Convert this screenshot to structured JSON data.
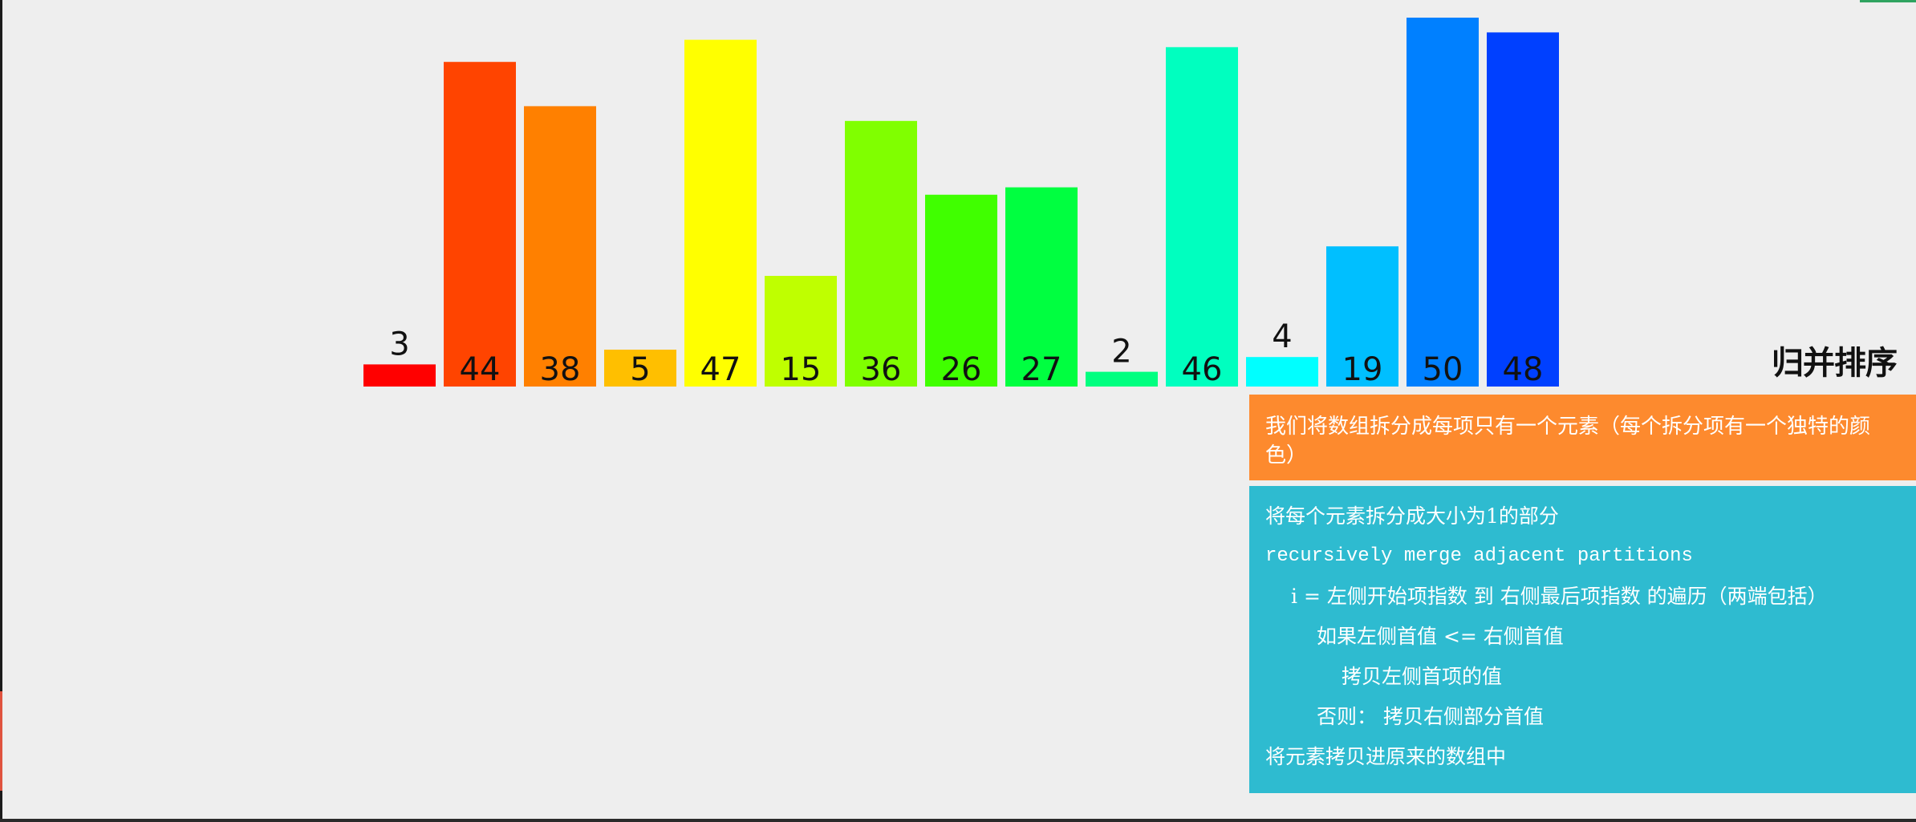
{
  "title": "归并排序",
  "description": "我们将数组拆分成每项只有一个元素（每个拆分项有一个独特的颜色）",
  "pseudocode": [
    {
      "text": "将每个元素拆分成大小为1的部分",
      "indent": 0
    },
    {
      "text": "recursively merge adjacent partitions",
      "indent": 0
    },
    {
      "text": "i = 左侧开始项指数 到 右侧最后项指数 的遍历（两端包括）",
      "indent": 1
    },
    {
      "text": "如果左侧首值 <= 右侧首值",
      "indent": 2
    },
    {
      "text": "拷贝左侧首项的值",
      "indent": 3
    },
    {
      "text": "否则： 拷贝右侧部分首值",
      "indent": 2
    },
    {
      "text": "将元素拷贝进原来的数组中",
      "indent": 0
    }
  ],
  "chart_data": {
    "type": "bar",
    "values": [
      3,
      44,
      38,
      5,
      47,
      15,
      36,
      26,
      27,
      2,
      46,
      4,
      19,
      50,
      48
    ],
    "colors": [
      "#ff0000",
      "#ff4400",
      "#ff8000",
      "#ffbf00",
      "#ffff00",
      "#bfff00",
      "#80ff00",
      "#40ff00",
      "#00ff40",
      "#00ff80",
      "#00ffbf",
      "#00ffff",
      "#00bfff",
      "#0080ff",
      "#0040ff"
    ],
    "ylim": [
      0,
      50
    ]
  }
}
